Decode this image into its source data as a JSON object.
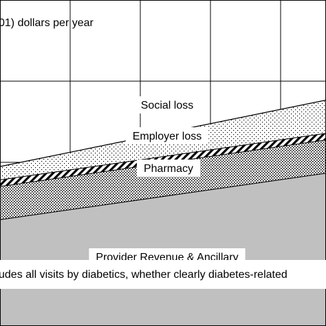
{
  "chart_data": {
    "type": "area",
    "stacked": true,
    "grid": true,
    "ylabel_fragment": "01) dollars per year",
    "footnote_fragment": "udes all visits by diabetics, whether clearly diabetes-related",
    "series": [
      {
        "name": "Provider Revenue & Ancillary",
        "color": "#c0c0c0",
        "pattern": "solid",
        "start": 32,
        "end": 46
      },
      {
        "name": "Pharmacy",
        "color": "#000000",
        "pattern": "dense-dots",
        "start": 10,
        "end": 10
      },
      {
        "name": "Employer loss",
        "color": "#000000",
        "pattern": "diagonal-hatch",
        "start": 2,
        "end": 2
      },
      {
        "name": "Social loss",
        "color": "#000000",
        "pattern": "sparse-dots",
        "start": 4,
        "end": 10
      }
    ],
    "ylim": [
      0,
      100
    ]
  }
}
